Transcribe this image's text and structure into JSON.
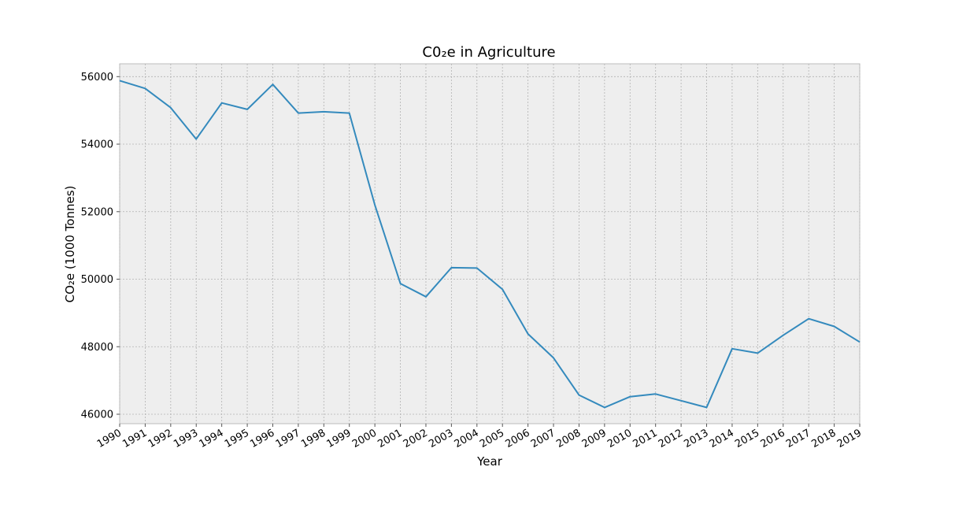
{
  "chart_data": {
    "type": "line",
    "title": "C0₂e in Agriculture",
    "xlabel": "Year",
    "ylabel": "CO₂e (1000 Tonnes)",
    "x": [
      1990,
      1991,
      1992,
      1993,
      1994,
      1995,
      1996,
      1997,
      1998,
      1999,
      2000,
      2001,
      2002,
      2003,
      2004,
      2005,
      2006,
      2007,
      2008,
      2009,
      2010,
      2011,
      2012,
      2013,
      2014,
      2015,
      2016,
      2017,
      2018,
      2019
    ],
    "series": [
      {
        "name": "",
        "color": "#348abd",
        "values": [
          55880,
          55650,
          55080,
          54150,
          55220,
          55030,
          55770,
          54920,
          54960,
          54920,
          52200,
          49870,
          49480,
          50340,
          50330,
          49700,
          48380,
          47670,
          46570,
          46200,
          46520,
          46600,
          46400,
          46200,
          47940,
          47810,
          48340,
          48830,
          48600,
          48140
        ]
      }
    ],
    "xlim": [
      1990,
      2019
    ],
    "ylim": [
      45720,
      56380
    ],
    "yticks": [
      46000,
      48000,
      50000,
      52000,
      54000,
      56000
    ],
    "grid": true,
    "legend": "none",
    "colors": {
      "background": "#eeeeee",
      "grid": "#b2b2b2",
      "frame": "#bcbcbc",
      "line": "#348abd"
    }
  }
}
